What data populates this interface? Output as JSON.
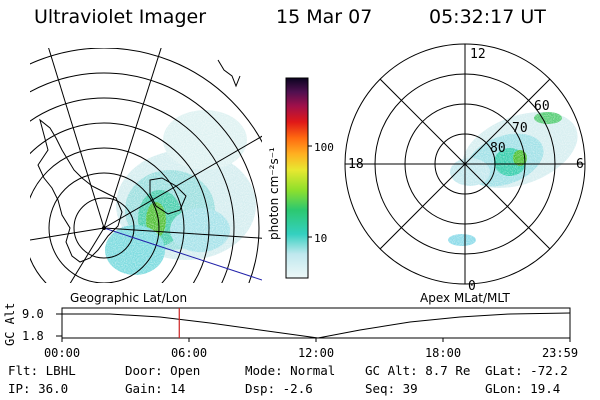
{
  "header": {
    "instrument": "Ultraviolet Imager",
    "date": "15 Mar 07",
    "time": "05:32:17 UT"
  },
  "colors": {
    "background": "#ffffff",
    "cursor_line": "#cc2222",
    "track_line": "#2222aa",
    "emission_low": "#bfe8ee",
    "emission_mid": "#34d0c0",
    "emission_high": "#4cc24a"
  },
  "geographic_map": {
    "label": "Geographic Lat/Lon"
  },
  "colorbar": {
    "unit_label": "photon cm⁻²s⁻¹",
    "ticks": [
      "100",
      "10"
    ]
  },
  "apex_map": {
    "label": "Apex MLat/MLT",
    "mlt_labels": {
      "top": "12",
      "left": "18",
      "right": "6",
      "bottom": "0"
    },
    "mlat_labels": [
      "60",
      "70",
      "80"
    ]
  },
  "altitude_plot": {
    "ylabel": "GC Alt",
    "ytick_top": "9.0",
    "ytick_bottom": "1.8",
    "xticks": [
      "00:00",
      "06:00",
      "12:00",
      "18:00",
      "23:59"
    ],
    "current_time_hours": 5.54
  },
  "status": {
    "row1": [
      {
        "label": "Flt:",
        "value": "LBHL"
      },
      {
        "label": "Door:",
        "value": "Open"
      },
      {
        "label": "Mode:",
        "value": "Normal"
      },
      {
        "label": "GC Alt:",
        "value": "8.7 Re"
      },
      {
        "label": "GLat:",
        "value": "-72.2"
      }
    ],
    "row2": [
      {
        "label": "IP:",
        "value": "36.0"
      },
      {
        "label": "Gain:",
        "value": "14"
      },
      {
        "label": "Dsp:",
        "value": "-2.6"
      },
      {
        "label": "Seq:",
        "value": "39"
      },
      {
        "label": "GLon:",
        "value": "19.4"
      }
    ]
  }
}
